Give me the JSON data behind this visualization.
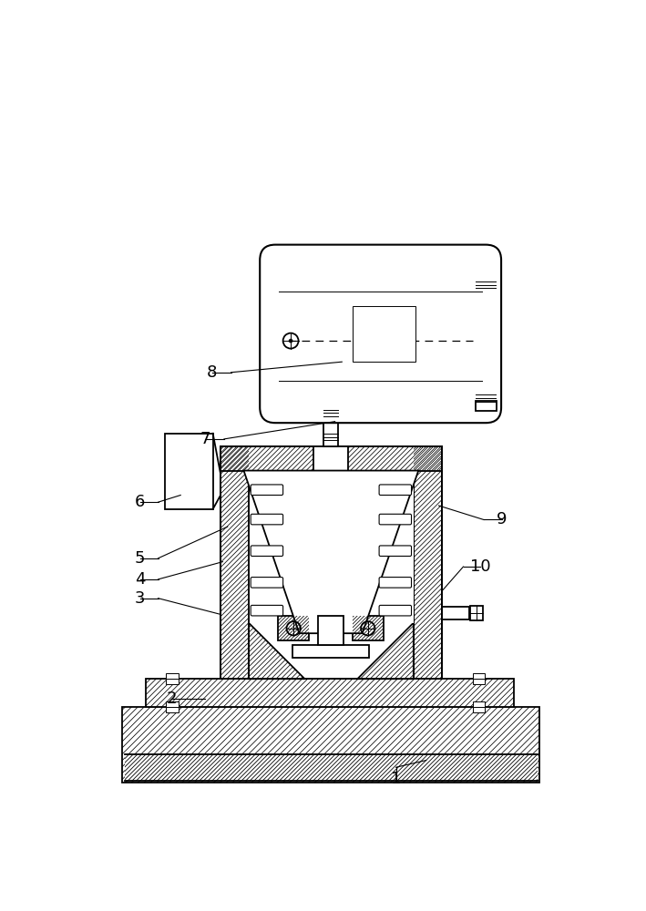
{
  "bg": "#ffffff",
  "lc": "#000000",
  "lw": 1.3,
  "lwt": 0.7,
  "figsize": [
    7.09,
    10.0
  ],
  "dpi": 100,
  "fs": 13,
  "hsp": 8
}
